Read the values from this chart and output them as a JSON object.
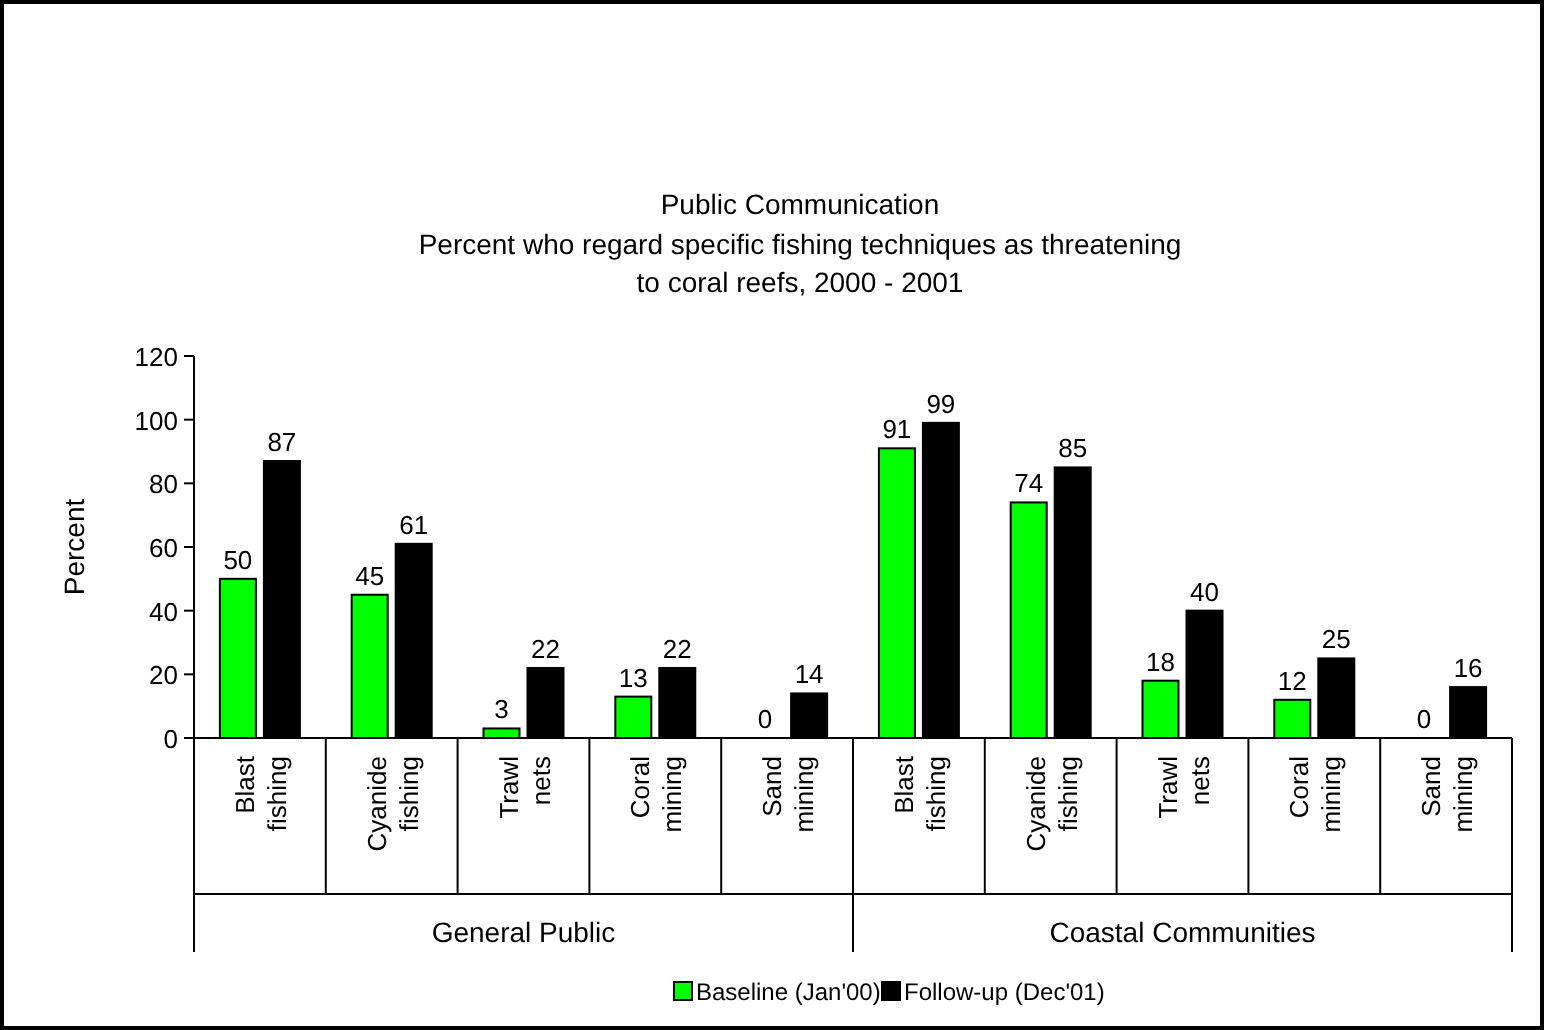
{
  "chart_data": {
    "type": "bar",
    "title": "Public Communication",
    "subtitle": "Percent who regard specific fishing techniques as threatening to coral reefs, 2000 - 2001",
    "ylabel": "Percent",
    "categories": [
      "Blast fishing",
      "Cyanide fishing",
      "Trawl nets",
      "Coral mining",
      "Sand mining",
      "Blast fishing",
      "Cyanide fishing",
      "Trawl nets",
      "Coral mining",
      "Sand mining"
    ],
    "series": [
      {
        "name": "Baseline (Jan'00)",
        "color": "#00ff00",
        "values": [
          50,
          45,
          3,
          13,
          0,
          91,
          74,
          18,
          12,
          0
        ]
      },
      {
        "name": "Follow-up (Dec'01)",
        "color": "#000000",
        "values": [
          87,
          61,
          22,
          22,
          14,
          99,
          85,
          40,
          25,
          16
        ]
      }
    ],
    "annotations": [
      "General Public",
      "Coastal Communities"
    ],
    "ylim": [
      0,
      120
    ],
    "yticks": [
      0,
      20,
      40,
      60,
      80,
      100,
      120
    ],
    "data_labels": true,
    "grid": false,
    "legend": "bottom"
  }
}
